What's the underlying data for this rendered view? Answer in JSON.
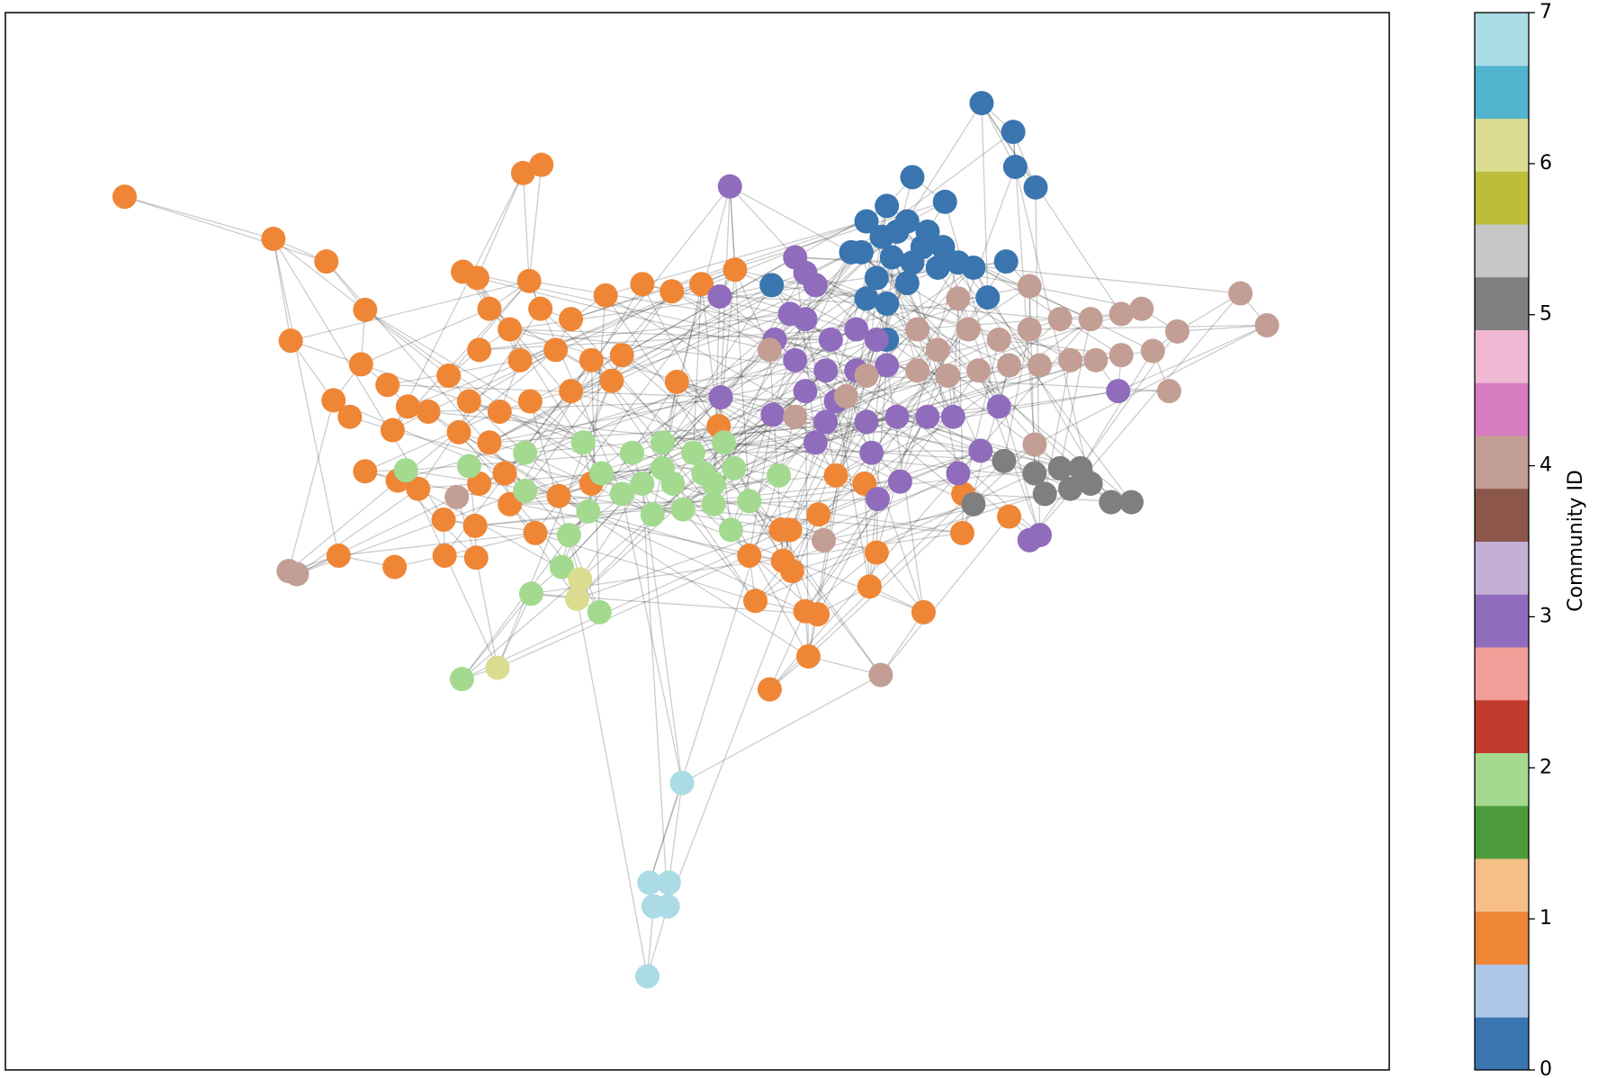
{
  "chart_data": {
    "type": "network",
    "x": [
      963,
      994,
      996,
      1016,
      895,
      927,
      987,
      969,
      757,
      850,
      870,
      890,
      845,
      875,
      905,
      860,
      890,
      920,
      940,
      955,
      835,
      880,
      910,
      850,
      870,
      870,
      865,
      895,
      925,
      122,
      268,
      320,
      358,
      285,
      354,
      327,
      343,
      380,
      513,
      531,
      454,
      468,
      519,
      594,
      630,
      659,
      688,
      721,
      664,
      480,
      500,
      530,
      560,
      470,
      510,
      545,
      580,
      440,
      460,
      490,
      520,
      560,
      600,
      420,
      450,
      480,
      400,
      385,
      358,
      390,
      410,
      435,
      466,
      332,
      387,
      436,
      467,
      500,
      525,
      548,
      580,
      610,
      820,
      848,
      945,
      944,
      990,
      803,
      766,
      775,
      735,
      768,
      777,
      860,
      853,
      741,
      790,
      802,
      906,
      793,
      755,
      705,
      495,
      470,
      398,
      460,
      515,
      572,
      515,
      577,
      558,
      551,
      521,
      588,
      453,
      717,
      764,
      620,
      650,
      680,
      710,
      630,
      660,
      690,
      720,
      640,
      670,
      700,
      735,
      610,
      590,
      650,
      700,
      716,
      780,
      790,
      800,
      706,
      775,
      790,
      760,
      815,
      840,
      860,
      780,
      810,
      840,
      870,
      790,
      820,
      707,
      758,
      810,
      850,
      880,
      910,
      935,
      800,
      855,
      883,
      861,
      940,
      962,
      980,
      1097,
      1010,
      1020,
      1010,
      1217,
      1243,
      1147,
      1131,
      1155,
      940,
      900,
      920,
      950,
      980,
      1010,
      1040,
      1070,
      1100,
      1120,
      900,
      930,
      960,
      990,
      1020,
      1050,
      1075,
      1100,
      850,
      830,
      780,
      1015,
      448,
      283,
      291,
      808,
      864,
      755,
      985,
      1015,
      1040,
      1060,
      1025,
      1050,
      1070,
      1090,
      1110,
      955,
      569,
      566,
      488,
      669,
      637,
      656,
      641,
      655,
      635
    ],
    "y": [
      100,
      128,
      162,
      182,
      172,
      196,
      254,
      289,
      277,
      215,
      200,
      215,
      245,
      250,
      240,
      270,
      275,
      260,
      255,
      260,
      245,
      225,
      225,
      290,
      295,
      330,
      230,
      255,
      240,
      191,
      232,
      254,
      301,
      331,
      354,
      389,
      405,
      374,
      168,
      160,
      264,
      270,
      273,
      287,
      276,
      283,
      276,
      262,
      371,
      300,
      320,
      300,
      310,
      340,
      350,
      340,
      350,
      365,
      390,
      400,
      390,
      380,
      370,
      400,
      420,
      430,
      395,
      418,
      458,
      467,
      475,
      505,
      511,
      540,
      551,
      540,
      542,
      490,
      518,
      482,
      470,
      345,
      462,
      470,
      480,
      518,
      502,
      500,
      515,
      515,
      540,
      545,
      555,
      537,
      570,
      584,
      594,
      597,
      595,
      638,
      670,
      414,
      460,
      470,
      457,
      453,
      440,
      430,
      477,
      497,
      520,
      551,
      577,
      595,
      660,
      515,
      462,
      440,
      430,
      440,
      430,
      470,
      470,
      460,
      455,
      500,
      495,
      490,
      487,
      480,
      460,
      455,
      470,
      181,
      250,
      265,
      277,
      288,
      305,
      310,
      330,
      330,
      320,
      330,
      350,
      360,
      360,
      355,
      380,
      390,
      386,
      403,
      410,
      410,
      405,
      405,
      405,
      430,
      440,
      468,
      485,
      460,
      438,
      395,
      380,
      525,
      520,
      278,
      285,
      316,
      380,
      341,
      322,
      290,
      320,
      340,
      320,
      330,
      320,
      310,
      310,
      305,
      300,
      360,
      365,
      360,
      355,
      355,
      350,
      350,
      345,
      365,
      385,
      405,
      432,
      483,
      555,
      558,
      525,
      656,
      340,
      448,
      460,
      455,
      455,
      480,
      475,
      470,
      488,
      488,
      490,
      563,
      582,
      649,
      761,
      858,
      858,
      881,
      881,
      949
    ],
    "values": [
      0,
      0,
      0,
      0,
      0,
      0,
      0,
      0,
      0,
      0,
      0,
      0,
      0,
      0,
      0,
      0,
      0,
      0,
      0,
      0,
      0,
      0,
      0,
      0,
      0,
      0,
      0,
      0,
      0,
      1,
      1,
      1,
      1,
      1,
      1,
      1,
      1,
      1,
      1,
      1,
      1,
      1,
      1,
      1,
      1,
      1,
      1,
      1,
      1,
      1,
      1,
      1,
      1,
      1,
      1,
      1,
      1,
      1,
      1,
      1,
      1,
      1,
      1,
      1,
      1,
      1,
      1,
      1,
      1,
      1,
      1,
      1,
      1,
      1,
      1,
      1,
      1,
      1,
      1,
      1,
      1,
      1,
      1,
      1,
      1,
      1,
      1,
      1,
      1,
      1,
      1,
      1,
      1,
      1,
      1,
      1,
      1,
      1,
      1,
      1,
      1,
      1,
      1,
      1,
      2,
      2,
      2,
      2,
      2,
      2,
      2,
      2,
      2,
      2,
      2,
      2,
      2,
      2,
      2,
      2,
      2,
      2,
      2,
      2,
      2,
      2,
      2,
      2,
      2,
      2,
      2,
      2,
      2,
      3,
      3,
      3,
      3,
      3,
      3,
      3,
      3,
      3,
      3,
      3,
      3,
      3,
      3,
      3,
      3,
      3,
      3,
      3,
      3,
      3,
      3,
      3,
      3,
      3,
      3,
      3,
      3,
      3,
      3,
      3,
      3,
      3,
      3,
      4,
      4,
      4,
      4,
      4,
      4,
      4,
      4,
      4,
      4,
      4,
      4,
      4,
      4,
      4,
      4,
      4,
      4,
      4,
      4,
      4,
      4,
      4,
      4,
      4,
      4,
      4,
      4,
      4,
      4,
      4,
      4,
      4,
      4,
      5,
      5,
      5,
      5,
      5,
      5,
      5,
      5,
      5,
      5,
      6,
      6,
      6,
      7,
      7,
      7,
      7,
      7,
      7
    ],
    "xlim": [
      5,
      1363
    ],
    "ylim": [
      1040,
      12
    ],
    "clim": [
      0,
      7
    ],
    "cticks": [
      0,
      1,
      2,
      3,
      4,
      5,
      6,
      7
    ],
    "colorbar_label": "Community ID",
    "colormap": [
      "#3a75af",
      "#aec7e8",
      "#ef8636",
      "#f5bf87",
      "#4b9b3d",
      "#a3da8f",
      "#c33b2f",
      "#f09e97",
      "#906cbc",
      "#c5b0d5",
      "#8c564b",
      "#c29e94",
      "#d67bbf",
      "#f1b9d3",
      "#7f7f7f",
      "#c7c7c7",
      "#bcbd3b",
      "#dcdc91",
      "#50b5cc",
      "#abdbe4"
    ]
  }
}
